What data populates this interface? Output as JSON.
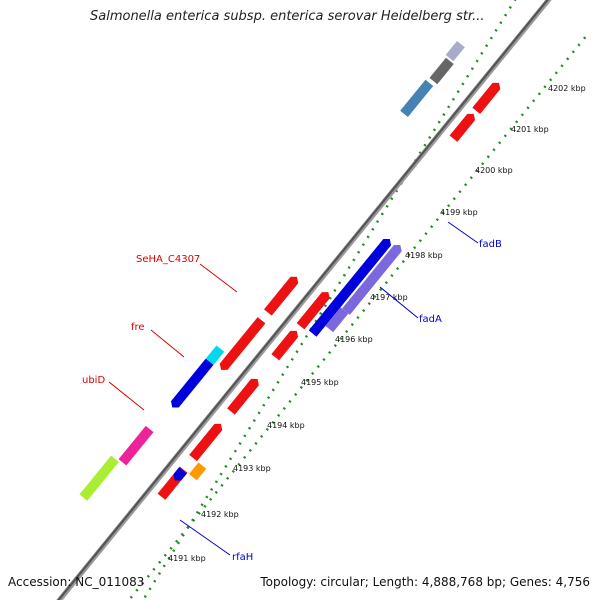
{
  "title": "Salmonella enterica subsp. enterica serovar Heidelberg str...",
  "footer": {
    "accession": "Accession: NC_011083",
    "topology": "Topology: circular; Length: 4,888,768 bp; Genes: 4,756"
  },
  "ticks": [
    "4191 kbp",
    "4192 kbp",
    "4193 kbp",
    "4194 kbp",
    "4195 kbp",
    "4196 kbp",
    "4197 kbp",
    "4198 kbp",
    "4199 kbp",
    "4200 kbp",
    "4201 kbp",
    "4202 kbp"
  ],
  "gene_labels": {
    "sehac4307": "SeHA_C4307",
    "fre": "fre",
    "ubid": "ubiD",
    "fadb": "fadB",
    "fada": "fadA",
    "rfah": "rfaH"
  },
  "colors": {
    "red": "#ee1111",
    "blue": "#0000dd",
    "violet": "#7b68dd",
    "cyan": "#00d8ee",
    "magenta": "#ee2299",
    "lime": "#aaee33",
    "orange": "#ff9900",
    "steel": "#4682b4",
    "gray": "#666666",
    "label_red": "#dd0000",
    "label_blue": "#0000cc",
    "dot_green": "#228b22"
  }
}
